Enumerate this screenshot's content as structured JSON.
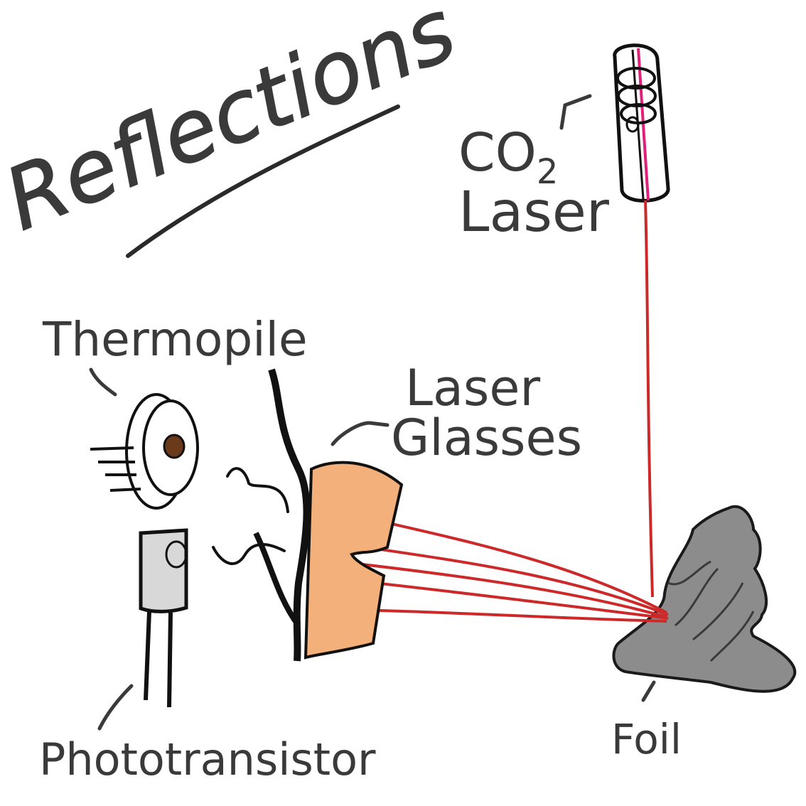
{
  "title": "Reflections",
  "labels": {
    "co2_prefix": "CO",
    "co2_subscript": "2",
    "laser": "Laser",
    "thermopile": "Thermopile",
    "laser_glasses_line1": "Laser",
    "laser_glasses_line2": "Glasses",
    "foil": "Foil",
    "phototransistor": "Phototransistor"
  },
  "colors": {
    "ink": "#1a1a1a",
    "text": "#3a3a3a",
    "beam": "#cc2a2a",
    "laser_core": "#e0207a",
    "glasses_fill": "#f4b07a",
    "foil_fill": "#8a8a8a"
  }
}
